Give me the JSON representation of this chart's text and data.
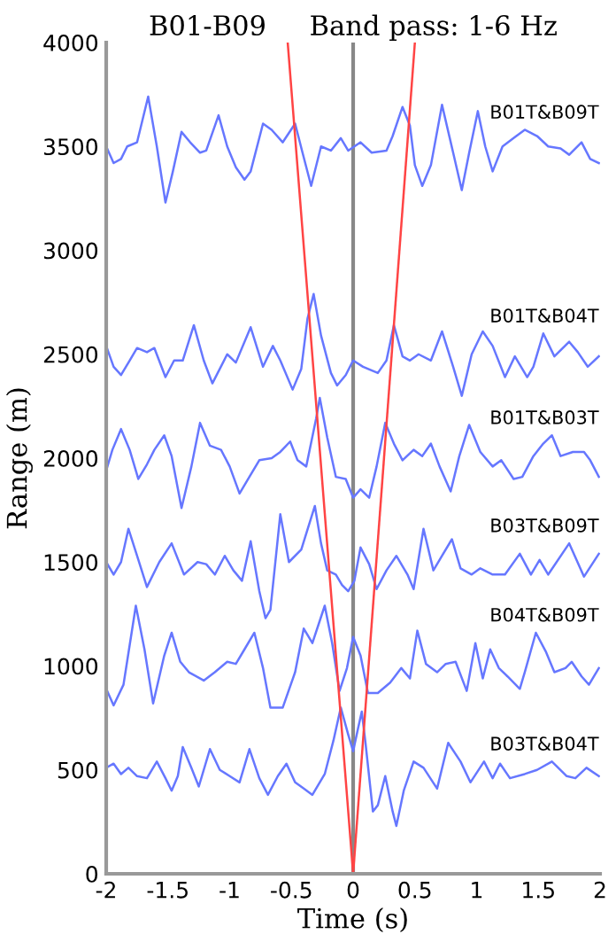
{
  "chart_data": {
    "type": "line",
    "title": "B01-B09     Band pass: 1-6 Hz",
    "xlabel": "Time (s)",
    "ylabel": "Range (m)",
    "xlim": [
      -2,
      2
    ],
    "ylim": [
      0,
      4000
    ],
    "xticks": [
      -2,
      -1.5,
      -1,
      -0.5,
      0,
      0.5,
      1,
      1.5,
      2
    ],
    "yticks": [
      0,
      500,
      1000,
      1500,
      2000,
      2500,
      3000,
      3500,
      4000
    ],
    "grid": false,
    "legend": false,
    "marker": "none",
    "line_style": "solid",
    "ref_lines": [
      {
        "axis": "x",
        "value": 0,
        "color": "#888888"
      }
    ],
    "series": [
      {
        "name": "B01T&B09T",
        "color": "#6677ff",
        "x": [
          -2.0,
          -1.94,
          -1.88,
          -1.83,
          -1.75,
          -1.66,
          -1.59,
          -1.52,
          -1.46,
          -1.39,
          -1.32,
          -1.24,
          -1.19,
          -1.09,
          -1.02,
          -0.95,
          -0.88,
          -0.83,
          -0.73,
          -0.66,
          -0.57,
          -0.47,
          -0.41,
          -0.34,
          -0.26,
          -0.18,
          -0.1,
          -0.04,
          0.01,
          0.06,
          0.15,
          0.27,
          0.32,
          0.4,
          0.46,
          0.5,
          0.56,
          0.63,
          0.72,
          0.81,
          0.88,
          0.94,
          1.01,
          1.07,
          1.13,
          1.21,
          1.3,
          1.39,
          1.49,
          1.58,
          1.68,
          1.75,
          1.85,
          1.92,
          1.99
        ],
        "values": [
          3500,
          3420,
          3440,
          3500,
          3520,
          3740,
          3500,
          3230,
          3380,
          3570,
          3520,
          3470,
          3480,
          3650,
          3500,
          3400,
          3340,
          3380,
          3610,
          3580,
          3520,
          3610,
          3470,
          3310,
          3500,
          3480,
          3540,
          3480,
          3500,
          3520,
          3470,
          3480,
          3550,
          3690,
          3600,
          3410,
          3310,
          3410,
          3700,
          3470,
          3290,
          3470,
          3670,
          3500,
          3380,
          3500,
          3540,
          3580,
          3550,
          3500,
          3490,
          3460,
          3520,
          3440,
          3420
        ]
      },
      {
        "name": "B01T&B04T",
        "color": "#6677ff",
        "x": [
          -2.0,
          -1.94,
          -1.88,
          -1.81,
          -1.75,
          -1.67,
          -1.61,
          -1.52,
          -1.45,
          -1.38,
          -1.29,
          -1.21,
          -1.14,
          -1.02,
          -0.95,
          -0.83,
          -0.73,
          -0.65,
          -0.59,
          -0.49,
          -0.42,
          -0.37,
          -0.32,
          -0.26,
          -0.18,
          -0.13,
          -0.06,
          0.0,
          0.08,
          0.2,
          0.27,
          0.33,
          0.4,
          0.46,
          0.53,
          0.63,
          0.72,
          0.81,
          0.88,
          0.96,
          1.05,
          1.13,
          1.23,
          1.31,
          1.41,
          1.46,
          1.54,
          1.63,
          1.75,
          1.82,
          1.9,
          1.99
        ],
        "values": [
          2540,
          2440,
          2400,
          2470,
          2530,
          2510,
          2530,
          2390,
          2470,
          2470,
          2640,
          2470,
          2360,
          2500,
          2460,
          2630,
          2440,
          2540,
          2470,
          2330,
          2430,
          2670,
          2790,
          2590,
          2410,
          2350,
          2400,
          2470,
          2440,
          2410,
          2470,
          2640,
          2490,
          2470,
          2500,
          2470,
          2610,
          2440,
          2300,
          2500,
          2610,
          2540,
          2390,
          2490,
          2390,
          2440,
          2600,
          2490,
          2560,
          2510,
          2440,
          2490
        ]
      },
      {
        "name": "B01T&B03T",
        "color": "#6677ff",
        "x": [
          -2.0,
          -1.95,
          -1.88,
          -1.81,
          -1.74,
          -1.67,
          -1.61,
          -1.53,
          -1.47,
          -1.39,
          -1.31,
          -1.24,
          -1.16,
          -1.07,
          -1.0,
          -0.92,
          -0.85,
          -0.76,
          -0.66,
          -0.59,
          -0.51,
          -0.45,
          -0.38,
          -0.3,
          -0.27,
          -0.21,
          -0.14,
          -0.06,
          0.0,
          0.06,
          0.13,
          0.19,
          0.26,
          0.33,
          0.4,
          0.49,
          0.56,
          0.63,
          0.7,
          0.79,
          0.86,
          0.94,
          1.03,
          1.13,
          1.2,
          1.3,
          1.37,
          1.46,
          1.54,
          1.61,
          1.68,
          1.78,
          1.87,
          1.92,
          1.99
        ],
        "values": [
          1940,
          2040,
          2140,
          2040,
          1900,
          1970,
          2040,
          2110,
          2010,
          1760,
          1960,
          2170,
          2060,
          2040,
          1960,
          1830,
          1900,
          1990,
          2000,
          2030,
          2080,
          1990,
          1960,
          2190,
          2290,
          2100,
          1910,
          1900,
          1810,
          1850,
          1810,
          1960,
          2170,
          2070,
          1990,
          2040,
          2010,
          2070,
          1960,
          1840,
          2010,
          2160,
          2030,
          1960,
          1990,
          1900,
          1910,
          2010,
          2070,
          2110,
          2010,
          2030,
          2030,
          1990,
          1910
        ]
      },
      {
        "name": "B03T&B09T",
        "color": "#6677ff",
        "x": [
          -2.0,
          -1.94,
          -1.88,
          -1.82,
          -1.75,
          -1.67,
          -1.57,
          -1.47,
          -1.37,
          -1.26,
          -1.19,
          -1.12,
          -1.04,
          -0.97,
          -0.9,
          -0.83,
          -0.76,
          -0.71,
          -0.67,
          -0.59,
          -0.52,
          -0.42,
          -0.31,
          -0.26,
          -0.21,
          -0.14,
          -0.09,
          -0.04,
          0.01,
          0.06,
          0.13,
          0.19,
          0.27,
          0.35,
          0.44,
          0.49,
          0.57,
          0.65,
          0.72,
          0.8,
          0.87,
          0.96,
          1.03,
          1.13,
          1.23,
          1.35,
          1.44,
          1.51,
          1.58,
          1.75,
          1.87,
          1.99
        ],
        "values": [
          1500,
          1440,
          1500,
          1660,
          1530,
          1380,
          1500,
          1590,
          1440,
          1500,
          1490,
          1440,
          1530,
          1460,
          1410,
          1600,
          1360,
          1230,
          1270,
          1730,
          1500,
          1560,
          1770,
          1590,
          1460,
          1440,
          1390,
          1360,
          1410,
          1570,
          1490,
          1370,
          1460,
          1530,
          1440,
          1370,
          1660,
          1460,
          1530,
          1610,
          1470,
          1440,
          1470,
          1440,
          1440,
          1540,
          1440,
          1510,
          1440,
          1590,
          1430,
          1540
        ]
      },
      {
        "name": "B04T&B09T",
        "color": "#6677ff",
        "x": [
          -2.0,
          -1.94,
          -1.86,
          -1.76,
          -1.69,
          -1.62,
          -1.53,
          -1.47,
          -1.4,
          -1.33,
          -1.21,
          -1.12,
          -1.02,
          -0.95,
          -0.88,
          -0.8,
          -0.73,
          -0.67,
          -0.57,
          -0.47,
          -0.4,
          -0.33,
          -0.23,
          -0.17,
          -0.11,
          -0.05,
          0.0,
          0.06,
          0.12,
          0.2,
          0.3,
          0.39,
          0.46,
          0.52,
          0.59,
          0.68,
          0.75,
          0.83,
          0.92,
          0.99,
          1.05,
          1.11,
          1.18,
          1.25,
          1.35,
          1.39,
          1.48,
          1.56,
          1.63,
          1.72,
          1.77,
          1.85,
          1.91,
          1.99
        ],
        "values": [
          890,
          810,
          910,
          1290,
          1080,
          820,
          1050,
          1160,
          1020,
          970,
          930,
          970,
          1020,
          1010,
          1080,
          1160,
          990,
          800,
          800,
          970,
          1180,
          1110,
          1290,
          1110,
          880,
          990,
          1140,
          1050,
          870,
          870,
          920,
          990,
          940,
          1170,
          1010,
          970,
          1010,
          1020,
          880,
          1110,
          940,
          1080,
          990,
          950,
          890,
          970,
          1160,
          1070,
          970,
          990,
          1020,
          950,
          910,
          990
        ]
      },
      {
        "name": "B03T&B04T",
        "color": "#6677ff",
        "x": [
          -2.0,
          -1.94,
          -1.88,
          -1.82,
          -1.75,
          -1.67,
          -1.59,
          -1.52,
          -1.47,
          -1.42,
          -1.38,
          -1.31,
          -1.25,
          -1.16,
          -1.08,
          -1.0,
          -0.92,
          -0.84,
          -0.76,
          -0.69,
          -0.61,
          -0.54,
          -0.47,
          -0.4,
          -0.33,
          -0.23,
          -0.16,
          -0.1,
          -0.04,
          0.0,
          0.04,
          0.07,
          0.1,
          0.16,
          0.2,
          0.26,
          0.32,
          0.35,
          0.41,
          0.49,
          0.57,
          0.68,
          0.77,
          0.87,
          0.95,
          1.06,
          1.13,
          1.19,
          1.27,
          1.39,
          1.49,
          1.61,
          1.73,
          1.8,
          1.89,
          1.99
        ],
        "values": [
          510,
          530,
          480,
          510,
          470,
          460,
          540,
          460,
          400,
          470,
          610,
          510,
          420,
          600,
          500,
          470,
          440,
          600,
          460,
          380,
          470,
          530,
          440,
          410,
          380,
          480,
          640,
          800,
          670,
          590,
          700,
          780,
          630,
          300,
          330,
          470,
          300,
          230,
          400,
          540,
          510,
          410,
          630,
          540,
          440,
          540,
          460,
          530,
          460,
          480,
          500,
          540,
          470,
          460,
          510,
          470
        ]
      },
      {
        "color": "#ff4444",
        "x": [
          0,
          -0.53
        ],
        "values": [
          0,
          4000
        ]
      },
      {
        "color": "#ff4444",
        "x": [
          0,
          0.5
        ],
        "values": [
          0,
          4000
        ]
      }
    ]
  }
}
